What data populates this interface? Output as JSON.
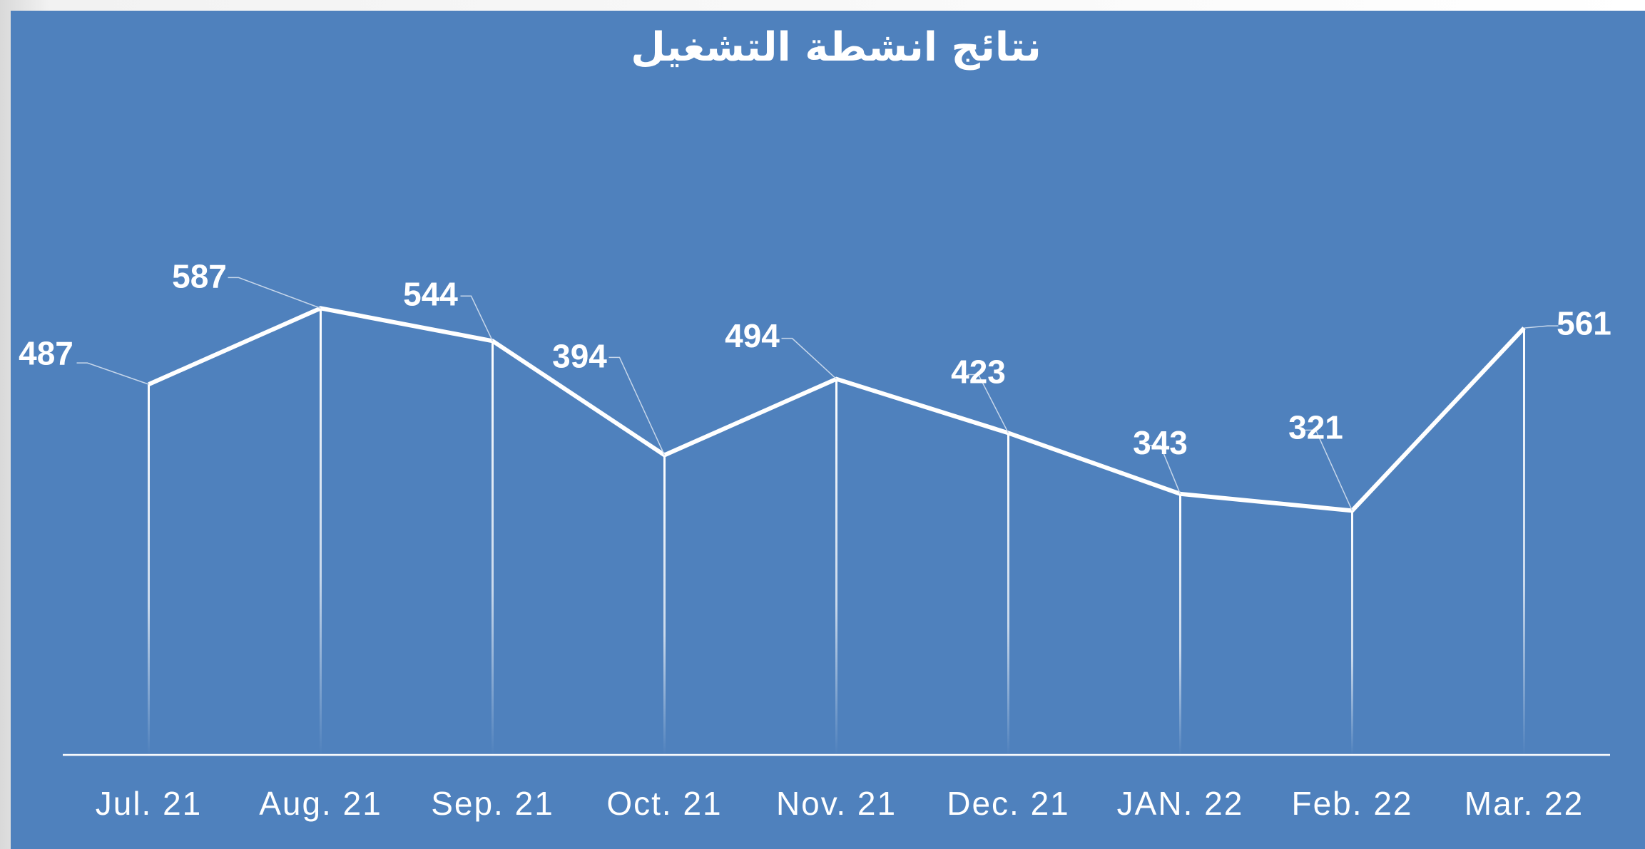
{
  "chart_data": {
    "type": "line",
    "title": "نتائج انشطة التشغيل",
    "categories": [
      "Jul. 21",
      "Aug. 21",
      "Sep. 21",
      "Oct. 21",
      "Nov. 21",
      "Dec. 21",
      "JAN. 22",
      "Feb. 22",
      "Mar. 22"
    ],
    "series": [
      {
        "name": null,
        "color": "#ffffff",
        "values": [
          487,
          587,
          544,
          394,
          494,
          423,
          343,
          321,
          561
        ]
      }
    ],
    "ylim": [
      0,
      800
    ],
    "grid": false
  }
}
